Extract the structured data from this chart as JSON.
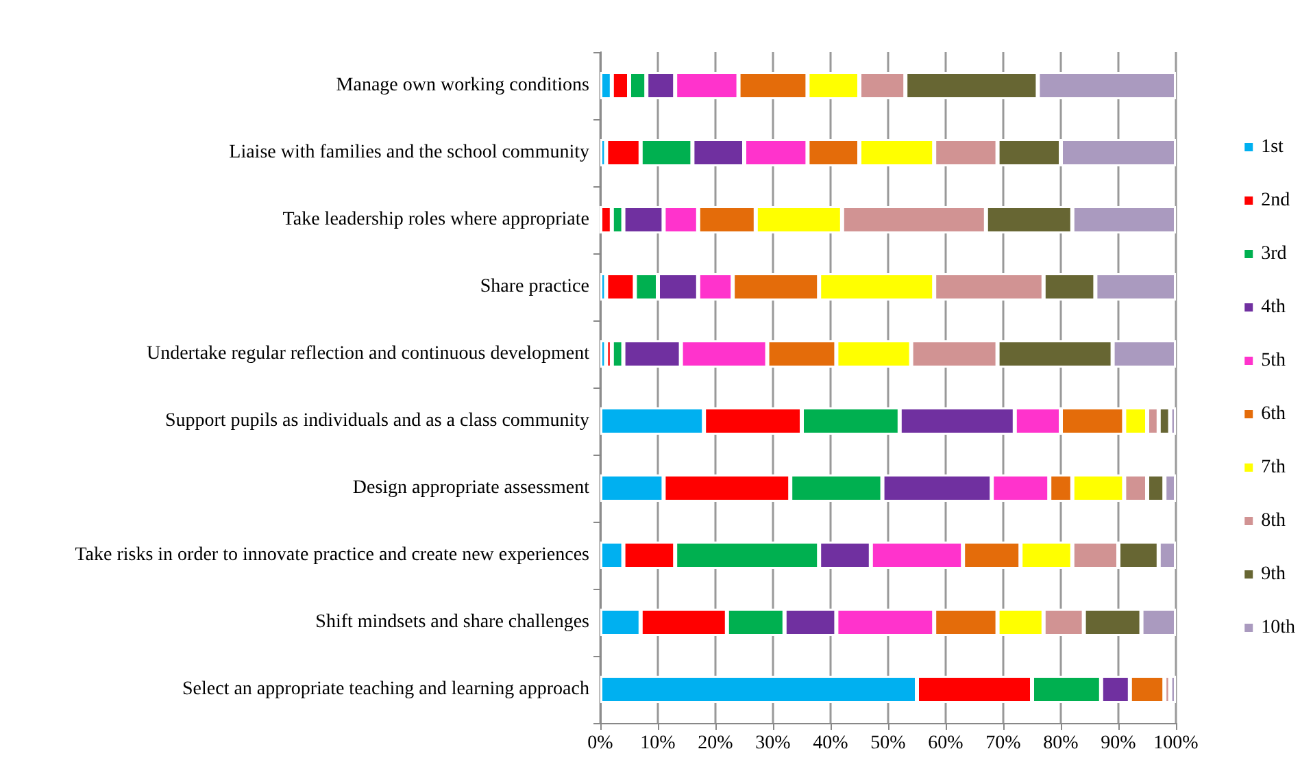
{
  "chart_data": {
    "type": "bar",
    "orientation": "horizontal",
    "stacked": true,
    "grid": "x",
    "legend": "right",
    "categories": [
      "Manage own working conditions",
      "Liaise with families and the school community",
      "Take leadership roles where appropriate",
      "Share practice",
      "Undertake regular reflection and continuous development",
      "Support pupils as individuals and as a class community",
      "Design appropriate assessment",
      "Take risks in order to innovate practice and create new experiences",
      "Shift mindsets and share challenges",
      "Select an appropriate teaching and learning approach"
    ],
    "xlim": [
      0,
      100
    ],
    "xticks": [
      {
        "value": 0,
        "label": "0%"
      },
      {
        "value": 10,
        "label": "10%"
      },
      {
        "value": 20,
        "label": "20%"
      },
      {
        "value": 30,
        "label": "30%"
      },
      {
        "value": 40,
        "label": "40%"
      },
      {
        "value": 50,
        "label": "50%"
      },
      {
        "value": 60,
        "label": "60%"
      },
      {
        "value": 70,
        "label": "70%"
      },
      {
        "value": 80,
        "label": "80%"
      },
      {
        "value": 90,
        "label": "90%"
      },
      {
        "value": 100,
        "label": "100%"
      }
    ],
    "series": [
      {
        "name": "1st",
        "color": "#00b0f0",
        "values": [
          2,
          1,
          0,
          1,
          1,
          18,
          11,
          4,
          7,
          55
        ]
      },
      {
        "name": "2nd",
        "color": "#ff0000",
        "values": [
          3,
          6,
          2,
          5,
          1,
          17,
          22,
          9,
          15,
          20
        ]
      },
      {
        "name": "3rd",
        "color": "#00b050",
        "values": [
          3,
          9,
          2,
          4,
          2,
          17,
          16,
          25,
          10,
          12
        ]
      },
      {
        "name": "4th",
        "color": "#7030a0",
        "values": [
          5,
          9,
          7,
          7,
          10,
          20,
          19,
          9,
          9,
          5
        ]
      },
      {
        "name": "5th",
        "color": "#ff33cc",
        "values": [
          11,
          11,
          6,
          6,
          15,
          8,
          10,
          16,
          17,
          0
        ]
      },
      {
        "name": "6th",
        "color": "#e46c0a",
        "values": [
          12,
          9,
          10,
          15,
          12,
          11,
          4,
          10,
          11,
          6
        ]
      },
      {
        "name": "7th",
        "color": "#ffff00",
        "values": [
          9,
          13,
          15,
          20,
          13,
          4,
          9,
          9,
          8,
          0
        ]
      },
      {
        "name": "8th",
        "color": "#d19393",
        "values": [
          8,
          11,
          25,
          19,
          15,
          2,
          4,
          8,
          7,
          1
        ]
      },
      {
        "name": "9th",
        "color": "#676633",
        "values": [
          23,
          11,
          15,
          9,
          20,
          2,
          3,
          7,
          10,
          0
        ]
      },
      {
        "name": "10th",
        "color": "#aa9abf",
        "values": [
          24,
          20,
          18,
          14,
          11,
          1,
          2,
          3,
          6,
          1
        ]
      }
    ]
  }
}
